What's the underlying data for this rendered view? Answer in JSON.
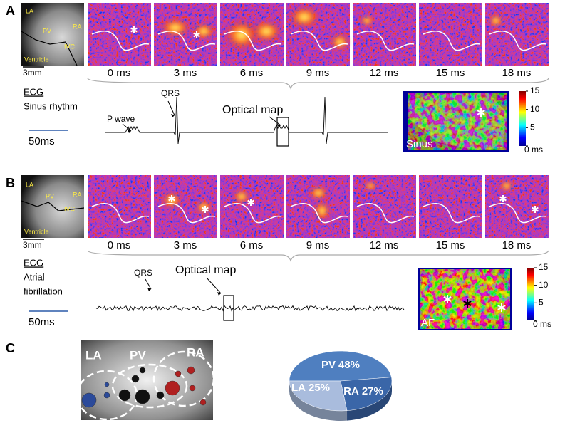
{
  "panel_a": {
    "label": "A",
    "anatomy": {
      "labels": [
        "LA",
        "PV",
        "RA",
        "IVC",
        "Ventricle"
      ],
      "scale": "3mm"
    },
    "frames": [
      "0 ms",
      "3 ms",
      "6 ms",
      "9 ms",
      "12 ms",
      "15 ms",
      "18 ms"
    ],
    "ecg": {
      "title": "ECG",
      "rhythm": [
        "Sinus rhythm"
      ],
      "scale": "50ms",
      "annotations": [
        "P wave",
        "QRS",
        "Optical map"
      ]
    },
    "map": {
      "label": "Sinus",
      "colorbar_lim": [
        0,
        15
      ],
      "colorbar_ticks": [
        15,
        10,
        5,
        {
          "value": 0,
          "label": "0 ms"
        }
      ]
    }
  },
  "panel_b": {
    "label": "B",
    "anatomy": {
      "labels": [
        "LA",
        "PV",
        "RA",
        "IVC",
        "Ventricle"
      ],
      "scale": "3mm"
    },
    "frames": [
      "0 ms",
      "3 ms",
      "6 ms",
      "9 ms",
      "12 ms",
      "15 ms",
      "18 ms"
    ],
    "ecg": {
      "title": "ECG",
      "rhythm": [
        "Atrial",
        "fibrillation"
      ],
      "scale": "50ms",
      "annotations": [
        "QRS",
        "Optical map"
      ]
    },
    "map": {
      "label": "AF",
      "colorbar_lim": [
        0,
        15
      ],
      "colorbar_ticks": [
        15,
        10,
        5,
        {
          "value": 0,
          "label": "0 ms"
        }
      ]
    }
  },
  "panel_c": {
    "label": "C",
    "image_labels": [
      "LA",
      "PV",
      "RA"
    ]
  },
  "chart_data": {
    "type": "pie",
    "categories": [
      "PV",
      "LA",
      "RA"
    ],
    "values": [
      48,
      25,
      27
    ],
    "value_labels": [
      "48%",
      "25%",
      "27%"
    ],
    "colors": [
      "#4f7fc0",
      "#3a66a8",
      "#a9bcdd"
    ]
  }
}
